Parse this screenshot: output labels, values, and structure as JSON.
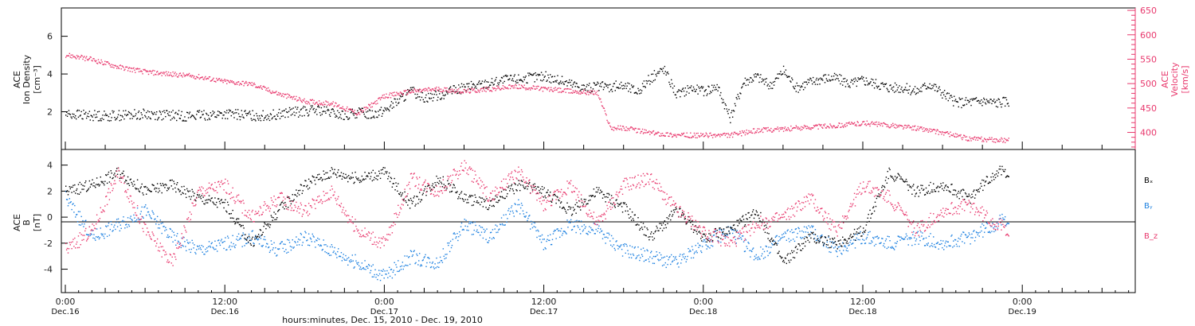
{
  "chart_data": [
    {
      "type": "scatter",
      "panel": "top",
      "ylabel_left": [
        "ACE",
        "Ion Density",
        "[cm⁻³]"
      ],
      "ylabel_right": [
        "ACE",
        "Velocity",
        "[km/s]"
      ],
      "yticks_left": [
        "2",
        "4",
        "6"
      ],
      "ylim_left": [
        0,
        7.5
      ],
      "yticks_right": [
        "400",
        "450",
        "500",
        "550",
        "600",
        "650"
      ],
      "ylim_right": [
        365,
        655
      ],
      "series": [
        {
          "name": "",
          "color": "#000000",
          "axis": "left",
          "x_hours": [
            0,
            3,
            6,
            9,
            12,
            15,
            17,
            19,
            21,
            22,
            23,
            24,
            25,
            26,
            27,
            28,
            30,
            33,
            36,
            39,
            42,
            43,
            44,
            45,
            46,
            47,
            48,
            49,
            50,
            51,
            52,
            53,
            54,
            55,
            56,
            57,
            58,
            59,
            60,
            62,
            63,
            64,
            65,
            66,
            67,
            69,
            70,
            71
          ],
          "values": [
            1.9,
            1.8,
            1.9,
            1.8,
            1.9,
            1.8,
            2.0,
            2.1,
            1.8,
            2.0,
            1.9,
            2.1,
            2.6,
            3.1,
            2.8,
            2.9,
            3.3,
            3.7,
            3.9,
            3.3,
            3.4,
            3.1,
            3.8,
            4.3,
            2.9,
            3.3,
            3.1,
            3.4,
            1.7,
            3.6,
            3.9,
            3.4,
            4.2,
            3.3,
            3.6,
            3.8,
            3.8,
            3.5,
            3.7,
            3.3,
            3.3,
            3.1,
            3.5,
            3.0,
            2.5,
            2.6,
            2.5,
            2.6
          ]
        },
        {
          "name": "",
          "color": "#e8386d",
          "axis": "right",
          "x_hours": [
            0,
            2,
            4,
            6,
            8,
            10,
            12,
            14,
            16,
            18,
            20,
            22,
            24,
            26,
            28,
            30,
            32,
            34,
            36,
            38,
            40,
            41,
            42,
            44,
            46,
            48,
            50,
            52,
            54,
            56,
            58,
            60,
            62,
            64,
            66,
            68,
            70,
            71
          ],
          "values": [
            560,
            550,
            535,
            525,
            520,
            515,
            505,
            500,
            480,
            465,
            460,
            440,
            475,
            485,
            490,
            485,
            490,
            495,
            490,
            485,
            482,
            410,
            410,
            400,
            395,
            395,
            395,
            405,
            408,
            412,
            415,
            420,
            415,
            410,
            400,
            388,
            385,
            385
          ]
        }
      ]
    },
    {
      "type": "scatter",
      "panel": "bottom",
      "ylabel": [
        "ACE",
        "B",
        "[nT]"
      ],
      "yticks": [
        "-4",
        "-2",
        "0",
        "2",
        "4"
      ],
      "ylim": [
        -5.8,
        5.2
      ],
      "series": [
        {
          "name": "Bₓ",
          "color": "#000000",
          "x_hours": [
            0,
            2,
            4,
            6,
            8,
            10,
            12,
            14,
            16,
            18,
            20,
            22,
            24,
            26,
            28,
            30,
            32,
            34,
            36,
            38,
            40,
            42,
            44,
            46,
            48,
            50,
            52,
            54,
            56,
            58,
            60,
            62,
            64,
            66,
            68,
            70,
            71
          ],
          "values": [
            2.0,
            2.5,
            3.5,
            2.0,
            2.5,
            1.5,
            1.0,
            -2.0,
            0.5,
            2.5,
            3.5,
            3.0,
            3.5,
            1.0,
            3.0,
            1.5,
            1.0,
            2.5,
            2.0,
            0.5,
            2.0,
            0.8,
            -1.5,
            0.5,
            -1.5,
            -1.0,
            0.5,
            -3.5,
            -1.5,
            -2.0,
            -1.0,
            3.5,
            2.0,
            2.5,
            1.5,
            3.5,
            3.5
          ]
        },
        {
          "name": "Bᵧ",
          "color": "#1a7fe0",
          "x_hours": [
            0,
            2,
            4,
            6,
            8,
            10,
            12,
            14,
            16,
            18,
            20,
            22,
            24,
            26,
            28,
            30,
            32,
            34,
            36,
            38,
            40,
            42,
            44,
            46,
            48,
            50,
            52,
            54,
            56,
            58,
            60,
            62,
            64,
            66,
            68,
            70,
            71
          ],
          "values": [
            1.5,
            -1.5,
            -0.5,
            0.5,
            -1.5,
            -2.5,
            -2.0,
            -1.5,
            -2.5,
            -1.5,
            -2.5,
            -3.5,
            -4.5,
            -3.0,
            -3.5,
            -0.5,
            -1.5,
            1.0,
            -2.0,
            -0.5,
            -1.0,
            -2.5,
            -3.0,
            -3.5,
            -2.0,
            -1.0,
            -3.0,
            -1.5,
            -1.0,
            -2.5,
            -1.5,
            -2.0,
            -1.5,
            -2.0,
            -1.5,
            -0.5,
            0.0
          ]
        },
        {
          "name": "B_z",
          "color": "#e8386d",
          "x_hours": [
            0,
            2,
            4,
            6,
            8,
            10,
            12,
            14,
            16,
            18,
            20,
            22,
            24,
            26,
            28,
            30,
            32,
            34,
            36,
            38,
            40,
            42,
            44,
            46,
            48,
            50,
            52,
            54,
            56,
            58,
            60,
            62,
            64,
            66,
            68,
            70,
            71
          ],
          "values": [
            -2.5,
            -1.0,
            3.5,
            -1.0,
            -3.5,
            2.0,
            2.5,
            0.0,
            1.5,
            0.5,
            2.0,
            -1.0,
            -2.0,
            3.0,
            2.0,
            4.0,
            1.5,
            3.5,
            1.0,
            2.5,
            -0.5,
            2.5,
            3.0,
            0.5,
            -1.0,
            -2.0,
            -0.5,
            0.0,
            1.5,
            -1.0,
            2.5,
            1.5,
            -1.0,
            0.5,
            1.0,
            -0.5,
            -1.0
          ]
        }
      ]
    }
  ],
  "x_axis": {
    "label": "hours:minutes, Dec. 15, 2010 - Dec. 19, 2010",
    "range_hours": [
      -0.3,
      80.5
    ],
    "ticks": [
      {
        "hour": 0,
        "time": "0:00",
        "date": "Dec.16"
      },
      {
        "hour": 12,
        "time": "12:00",
        "date": "Dec.16"
      },
      {
        "hour": 24,
        "time": "0:00",
        "date": "Dec.17"
      },
      {
        "hour": 36,
        "time": "12:00",
        "date": "Dec.17"
      },
      {
        "hour": 48,
        "time": "0:00",
        "date": "Dec.18"
      },
      {
        "hour": 60,
        "time": "12:00",
        "date": "Dec.18"
      },
      {
        "hour": 72,
        "time": "0:00",
        "date": "Dec.19"
      }
    ]
  }
}
